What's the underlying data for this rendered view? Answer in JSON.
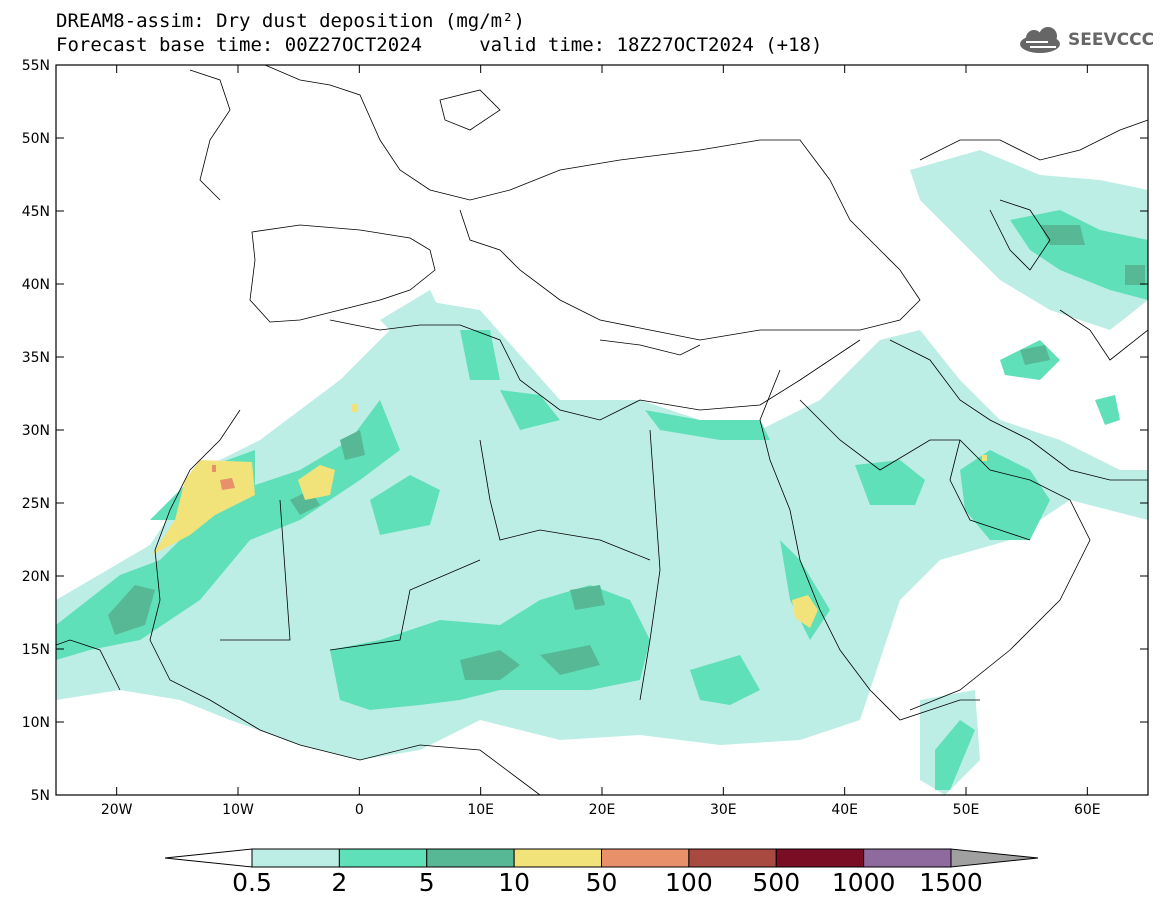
{
  "title": {
    "line1": "DREAM8-assim: Dry dust deposition (mg/m²)",
    "line2": "Forecast base time: 00Z27OCT2024     valid time: 18Z27OCT2024 (+18)"
  },
  "logo": {
    "text": "SEEVCCC",
    "icon": "cloud-logo-icon"
  },
  "axes": {
    "lat_labels": [
      "55N",
      "50N",
      "45N",
      "40N",
      "35N",
      "30N",
      "25N",
      "20N",
      "15N",
      "10N",
      "5N"
    ],
    "lon_labels": [
      "20W",
      "10W",
      "0",
      "10E",
      "20E",
      "30E",
      "40E",
      "50E",
      "60E"
    ],
    "lat_range": [
      5,
      55
    ],
    "lon_range": [
      -25,
      65
    ]
  },
  "colorbar": {
    "labels": [
      "0.5",
      "2",
      "5",
      "10",
      "50",
      "100",
      "500",
      "1000",
      "1500"
    ],
    "colors": [
      "#bdeee6",
      "#5fe0b9",
      "#56b894",
      "#f2e27a",
      "#e8906a",
      "#a84a40",
      "#7a0c24",
      "#8f6a9e",
      "#a0a0a0"
    ]
  },
  "chart_data": {
    "type": "heatmap",
    "variable": "Dry dust deposition (mg/m²)",
    "levels": [
      0.5,
      2,
      5,
      10,
      50,
      100,
      500,
      1000,
      1500
    ],
    "projection": "lat-lon",
    "lon_range": [
      -25,
      65
    ],
    "lat_range": [
      5,
      55
    ],
    "hotspots": [
      {
        "lon": -12,
        "lat": 25.5,
        "max_level": "50"
      },
      {
        "lon": -3,
        "lat": 26,
        "max_level": "10"
      },
      {
        "lon": 36.5,
        "lat": 17,
        "max_level": "10"
      }
    ]
  }
}
